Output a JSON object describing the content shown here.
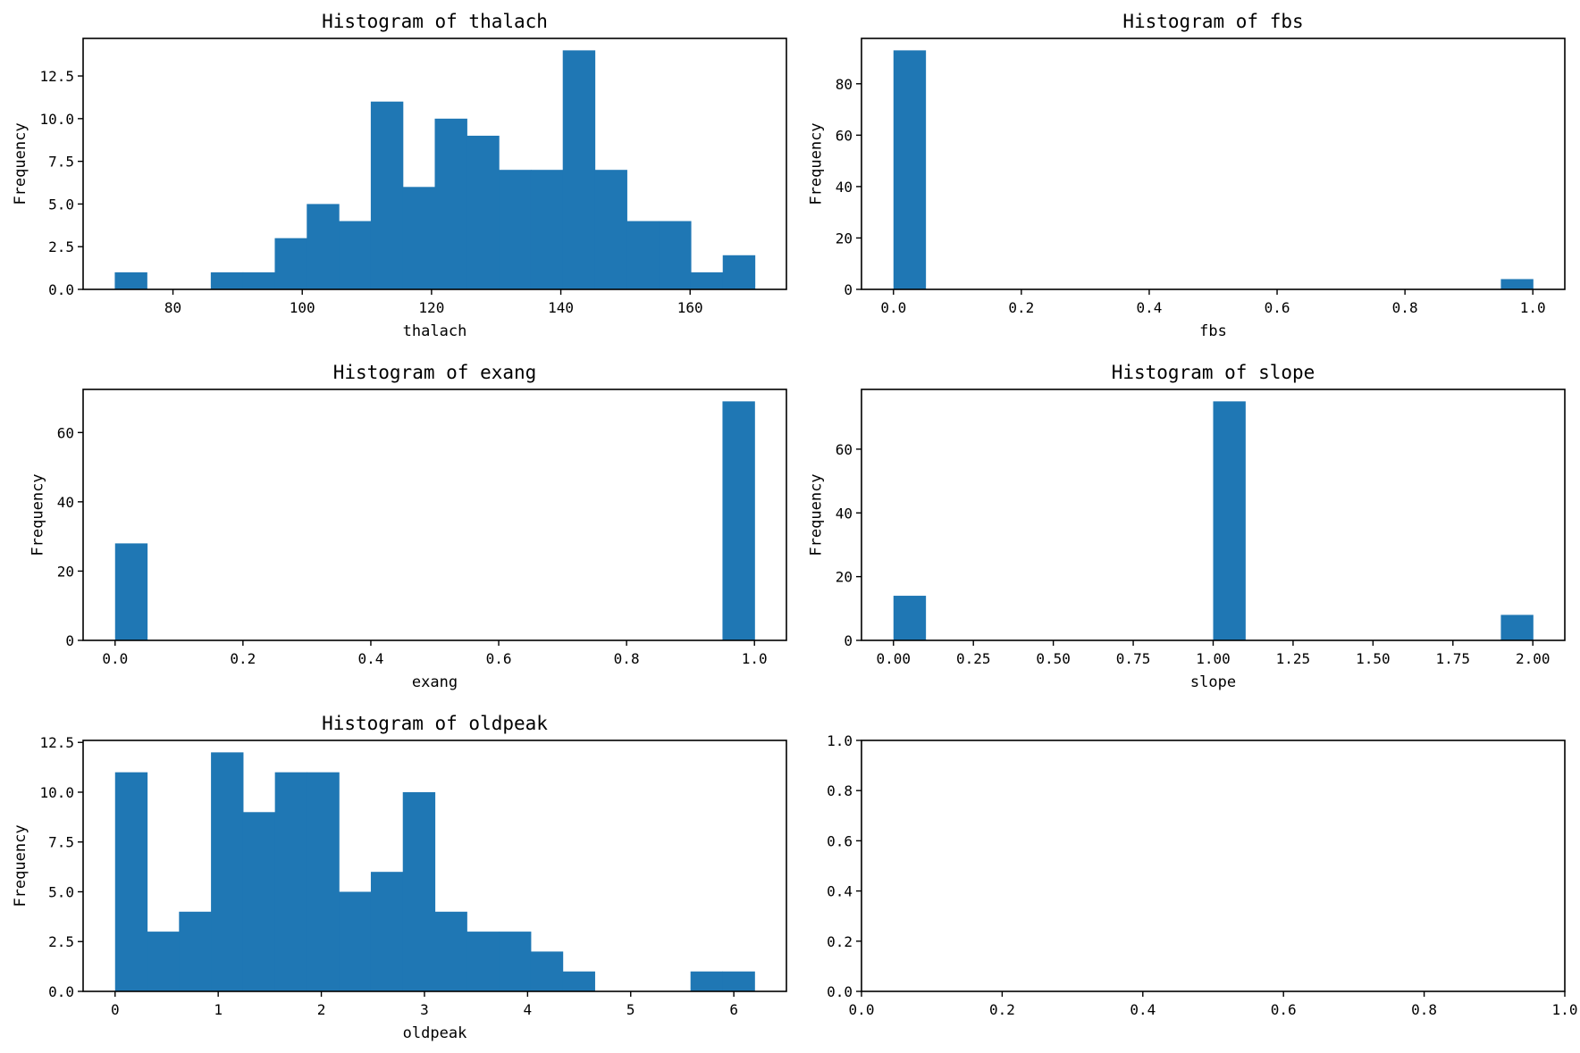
{
  "colors": {
    "bar": "#1f77b4",
    "axis": "#000000",
    "background": "#ffffff"
  },
  "chart_data": [
    {
      "type": "bar",
      "title": "Histogram of thalach",
      "xlabel": "thalach",
      "ylabel": "Frequency",
      "xlim": [
        66.1,
        174.9
      ],
      "ylim": [
        0,
        14.7
      ],
      "xticks": [
        80,
        100,
        120,
        140,
        160
      ],
      "xticklabels": [
        "80",
        "100",
        "120",
        "140",
        "160"
      ],
      "yticks": [
        0,
        2.5,
        5,
        7.5,
        10,
        12.5
      ],
      "yticklabels": [
        "0.0",
        "2.5",
        "5.0",
        "7.5",
        "10.0",
        "12.5"
      ],
      "bin_start": 71,
      "bin_width": 4.95,
      "values": [
        1,
        0,
        0,
        1,
        1,
        3,
        5,
        4,
        11,
        6,
        10,
        9,
        7,
        7,
        14,
        7,
        4,
        4,
        1,
        2
      ]
    },
    {
      "type": "bar",
      "title": "Histogram of fbs",
      "xlabel": "fbs",
      "ylabel": "Frequency",
      "xlim": [
        -0.05,
        1.05
      ],
      "ylim": [
        0,
        97.65
      ],
      "xticks": [
        0,
        0.2,
        0.4,
        0.6,
        0.8,
        1.0
      ],
      "xticklabels": [
        "0.0",
        "0.2",
        "0.4",
        "0.6",
        "0.8",
        "1.0"
      ],
      "yticks": [
        0,
        20,
        40,
        60,
        80
      ],
      "yticklabels": [
        "0",
        "20",
        "40",
        "60",
        "80"
      ],
      "bin_start": 0,
      "bin_width": 0.05,
      "values": [
        93,
        0,
        0,
        0,
        0,
        0,
        0,
        0,
        0,
        0,
        0,
        0,
        0,
        0,
        0,
        0,
        0,
        0,
        0,
        4
      ]
    },
    {
      "type": "bar",
      "title": "Histogram of exang",
      "xlabel": "exang",
      "ylabel": "Frequency",
      "xlim": [
        -0.05,
        1.05
      ],
      "ylim": [
        0,
        72.45
      ],
      "xticks": [
        0,
        0.2,
        0.4,
        0.6,
        0.8,
        1.0
      ],
      "xticklabels": [
        "0.0",
        "0.2",
        "0.4",
        "0.6",
        "0.8",
        "1.0"
      ],
      "yticks": [
        0,
        20,
        40,
        60
      ],
      "yticklabels": [
        "0",
        "20",
        "40",
        "60"
      ],
      "bin_start": 0,
      "bin_width": 0.05,
      "values": [
        28,
        0,
        0,
        0,
        0,
        0,
        0,
        0,
        0,
        0,
        0,
        0,
        0,
        0,
        0,
        0,
        0,
        0,
        0,
        69
      ]
    },
    {
      "type": "bar",
      "title": "Histogram of slope",
      "xlabel": "slope",
      "ylabel": "Frequency",
      "xlim": [
        -0.1,
        2.1
      ],
      "ylim": [
        0,
        78.75
      ],
      "xticks": [
        0,
        0.25,
        0.5,
        0.75,
        1.0,
        1.25,
        1.5,
        1.75,
        2.0
      ],
      "xticklabels": [
        "0.00",
        "0.25",
        "0.50",
        "0.75",
        "1.00",
        "1.25",
        "1.50",
        "1.75",
        "2.00"
      ],
      "yticks": [
        0,
        20,
        40,
        60
      ],
      "yticklabels": [
        "0",
        "20",
        "40",
        "60"
      ],
      "bin_start": 0,
      "bin_width": 0.1,
      "values": [
        14,
        0,
        0,
        0,
        0,
        0,
        0,
        0,
        0,
        0,
        75,
        0,
        0,
        0,
        0,
        0,
        0,
        0,
        0,
        8
      ]
    },
    {
      "type": "bar",
      "title": "Histogram of oldpeak",
      "xlabel": "oldpeak",
      "ylabel": "Frequency",
      "xlim": [
        -0.31,
        6.51
      ],
      "ylim": [
        0,
        12.6
      ],
      "xticks": [
        0,
        1,
        2,
        3,
        4,
        5,
        6
      ],
      "xticklabels": [
        "0",
        "1",
        "2",
        "3",
        "4",
        "5",
        "6"
      ],
      "yticks": [
        0,
        2.5,
        5,
        7.5,
        10,
        12.5
      ],
      "yticklabels": [
        "0.0",
        "2.5",
        "5.0",
        "7.5",
        "10.0",
        "12.5"
      ],
      "bin_start": 0,
      "bin_width": 0.31,
      "values": [
        11,
        3,
        4,
        12,
        9,
        11,
        11,
        5,
        6,
        10,
        4,
        3,
        3,
        2,
        1,
        0,
        0,
        0,
        1,
        1
      ]
    },
    {
      "type": "bar",
      "title": "",
      "xlabel": "",
      "ylabel": "",
      "xlim": [
        0,
        1
      ],
      "ylim": [
        0,
        1
      ],
      "xticks": [
        0,
        0.2,
        0.4,
        0.6,
        0.8,
        1.0
      ],
      "xticklabels": [
        "0.0",
        "0.2",
        "0.4",
        "0.6",
        "0.8",
        "1.0"
      ],
      "yticks": [
        0,
        0.2,
        0.4,
        0.6,
        0.8,
        1.0
      ],
      "yticklabels": [
        "0.0",
        "0.2",
        "0.4",
        "0.6",
        "0.8",
        "1.0"
      ],
      "bin_start": 0,
      "bin_width": 0.05,
      "values": []
    }
  ]
}
